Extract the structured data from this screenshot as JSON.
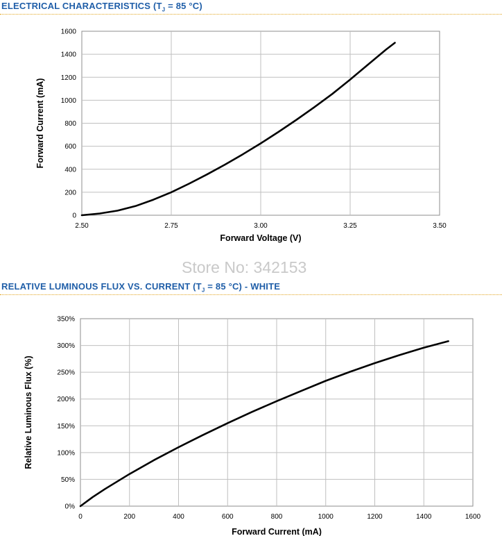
{
  "page": {
    "watermark": "Store No: 342153"
  },
  "charts": [
    {
      "title_prefix": "ELECTRICAL CHARACTERISTICS (T",
      "title_sub": "J",
      "title_suffix": " = 85 °C)"
    },
    {
      "title_prefix": "RELATIVE LUMINOUS FLUX VS. CURRENT (T",
      "title_sub": "J",
      "title_suffix": " = 85 °C) - WHITE"
    }
  ],
  "chart_data": [
    {
      "type": "line",
      "title": "ELECTRICAL CHARACTERISTICS (TJ = 85 °C)",
      "xlabel": "Forward Voltage (V)",
      "ylabel": "Forward Current (mA)",
      "xlim": [
        2.5,
        3.5
      ],
      "ylim": [
        0,
        1600
      ],
      "xticks": [
        2.5,
        2.75,
        3.0,
        3.25,
        3.5
      ],
      "xtick_labels": [
        "2.50",
        "2.75",
        "3.00",
        "3.25",
        "3.50"
      ],
      "yticks": [
        0,
        200,
        400,
        600,
        800,
        1000,
        1200,
        1400,
        1600
      ],
      "ytick_labels": [
        "0",
        "200",
        "400",
        "600",
        "800",
        "1000",
        "1200",
        "1400",
        "1600"
      ],
      "grid": true,
      "series": [
        {
          "color": "#000000",
          "x": [
            2.5,
            2.55,
            2.6,
            2.65,
            2.7,
            2.75,
            2.8,
            2.85,
            2.9,
            2.95,
            3.0,
            3.05,
            3.1,
            3.15,
            3.2,
            3.25,
            3.3,
            3.35,
            3.375
          ],
          "y": [
            0,
            15,
            40,
            80,
            135,
            200,
            275,
            355,
            440,
            530,
            625,
            725,
            830,
            940,
            1055,
            1180,
            1310,
            1440,
            1500
          ]
        }
      ]
    },
    {
      "type": "line",
      "title": "RELATIVE LUMINOUS FLUX VS. CURRENT (TJ = 85 °C) - WHITE",
      "xlabel": "Forward Current (mA)",
      "ylabel": "Relative Luminous Flux (%)",
      "xlim": [
        0,
        1600
      ],
      "ylim": [
        0,
        350
      ],
      "xticks": [
        0,
        200,
        400,
        600,
        800,
        1000,
        1200,
        1400,
        1600
      ],
      "xtick_labels": [
        "0",
        "200",
        "400",
        "600",
        "800",
        "1000",
        "1200",
        "1400",
        "1600"
      ],
      "yticks": [
        0,
        50,
        100,
        150,
        200,
        250,
        300,
        350
      ],
      "ytick_labels": [
        "0%",
        "50%",
        "100%",
        "150%",
        "200%",
        "250%",
        "300%",
        "350%"
      ],
      "grid": true,
      "series": [
        {
          "color": "#000000",
          "x": [
            0,
            50,
            100,
            200,
            300,
            400,
            500,
            600,
            700,
            800,
            900,
            1000,
            1100,
            1200,
            1300,
            1400,
            1500
          ],
          "y": [
            0,
            17,
            32,
            60,
            86,
            110,
            133,
            155,
            176,
            196,
            215,
            234,
            251,
            267,
            282,
            296,
            308
          ]
        }
      ]
    }
  ]
}
